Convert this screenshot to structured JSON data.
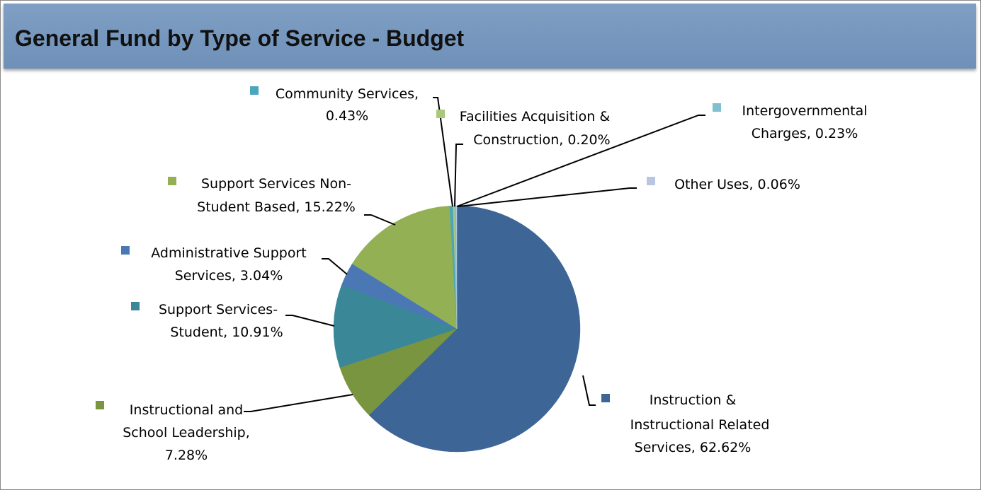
{
  "header": {
    "title": "General Fund by Type of Service - Budget"
  },
  "colors": {
    "header_bg": "#7596bf"
  },
  "chart_data": {
    "type": "pie",
    "title": "General Fund by Type of Service - Budget",
    "slices": [
      {
        "name": "Instruction & Instructional Related Services",
        "label_lines": [
          "Instruction &",
          "Instructional Related",
          "Services, 62.62%"
        ],
        "value": 62.62,
        "color": "#3d6596"
      },
      {
        "name": "Instructional and School Leadership",
        "label_lines": [
          "Instructional and",
          "School Leadership,",
          "7.28%"
        ],
        "value": 7.28,
        "color": "#7a9540"
      },
      {
        "name": "Support Services-Student",
        "label_lines": [
          "Support Services-",
          "Student, 10.91%"
        ],
        "value": 10.91,
        "color": "#3a8798"
      },
      {
        "name": "Administrative Support Services",
        "label_lines": [
          "Administrative Support",
          "Services, 3.04%"
        ],
        "value": 3.04,
        "color": "#4b78b5"
      },
      {
        "name": "Support Services Non-Student Based",
        "label_lines": [
          "Support Services Non-",
          "Student Based, 15.22%"
        ],
        "value": 15.22,
        "color": "#93b055"
      },
      {
        "name": "Community Services",
        "label_lines": [
          "Community Services,",
          "0.43%"
        ],
        "value": 0.43,
        "color": "#4ba6bd"
      },
      {
        "name": "Facilities Acquisition & Construction",
        "label_lines": [
          "Facilities Acquisition &",
          "Construction, 0.20%"
        ],
        "value": 0.2,
        "color": "#a8c97a"
      },
      {
        "name": "Intergovernmental Charges",
        "label_lines": [
          "Intergovernmental",
          "Charges, 0.23%"
        ],
        "value": 0.23,
        "color": "#7fbfcf"
      },
      {
        "name": "Other Uses",
        "label_lines": [
          "Other Uses, 0.06%"
        ],
        "value": 0.06,
        "color": "#b9c6e0"
      }
    ]
  }
}
